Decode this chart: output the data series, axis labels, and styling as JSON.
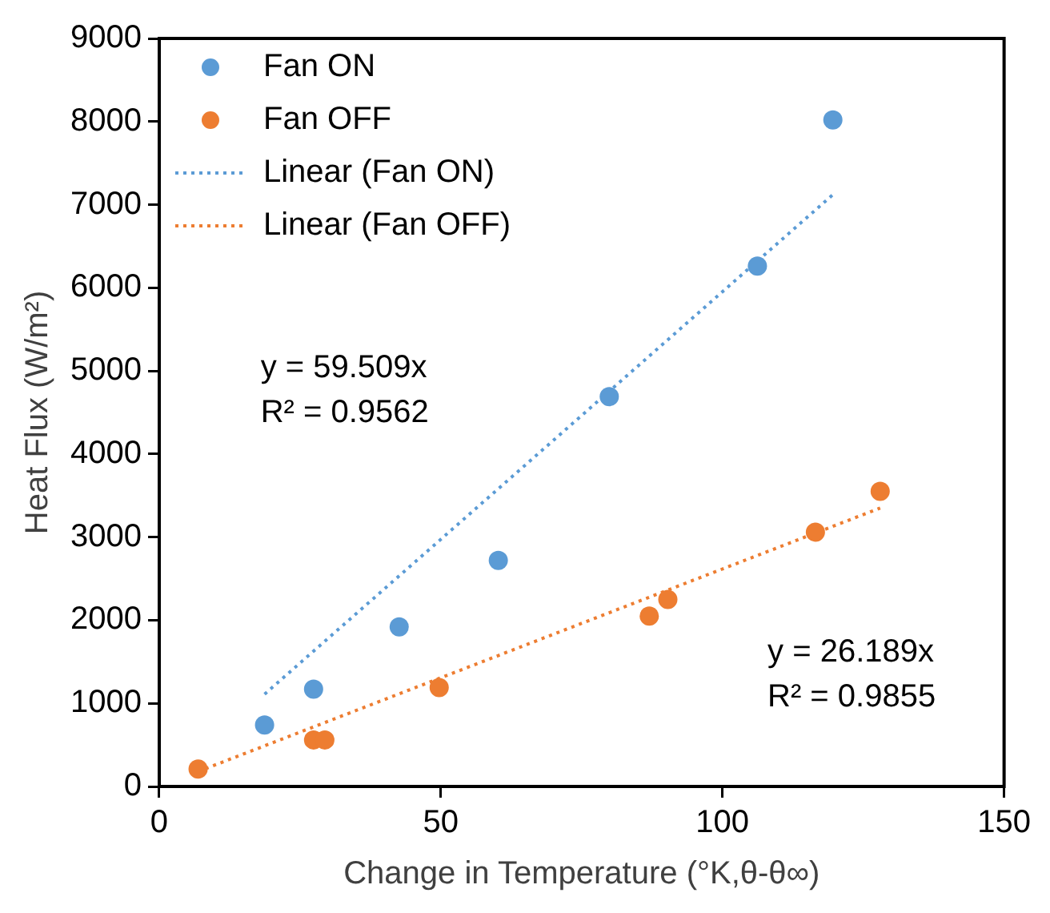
{
  "chart_data": {
    "type": "scatter",
    "xlabel": "Change in Temperature (°K,θ-θ∞)",
    "ylabel": "Heat Flux (W/m²)",
    "xlim": [
      0,
      150
    ],
    "xticks": [
      0,
      50,
      100,
      150
    ],
    "ylim": [
      0,
      9000
    ],
    "yticks": [
      0,
      1000,
      2000,
      3000,
      4000,
      5000,
      6000,
      7000,
      8000,
      9000
    ],
    "grid": false,
    "legend": "top left",
    "series": [
      {
        "name": "Fan ON",
        "type": "scatter",
        "marker": "circle",
        "color": "#5b9bd5",
        "x": [
          18.7,
          27.4,
          42.6,
          60.2,
          79.9,
          106.2,
          119.6
        ],
        "values": [
          740,
          1170,
          1920,
          2720,
          4690,
          6260,
          8020
        ]
      },
      {
        "name": "Fan OFF",
        "type": "scatter",
        "marker": "circle",
        "color": "#ed7d31",
        "x": [
          6.9,
          27.4,
          29.4,
          49.7,
          87.0,
          90.3,
          116.5,
          128.0
        ],
        "values": [
          210,
          560,
          560,
          1190,
          2050,
          2250,
          3060,
          3550
        ]
      },
      {
        "name": "Linear (Fan ON)",
        "type": "line",
        "marker": "none",
        "line_style": "dotted",
        "color": "#5b9bd5",
        "x": [
          18.7,
          119.6
        ],
        "values": [
          1110,
          7120
        ]
      },
      {
        "name": "Linear (Fan OFF)",
        "type": "line",
        "marker": "none",
        "line_style": "dotted",
        "color": "#ed7d31",
        "x": [
          6.9,
          128.0
        ],
        "values": [
          180,
          3350
        ]
      }
    ],
    "annotations": [
      "y = 59.509x\nR² = 0.9562",
      "y = 26.189x\nR² = 0.9855"
    ]
  }
}
